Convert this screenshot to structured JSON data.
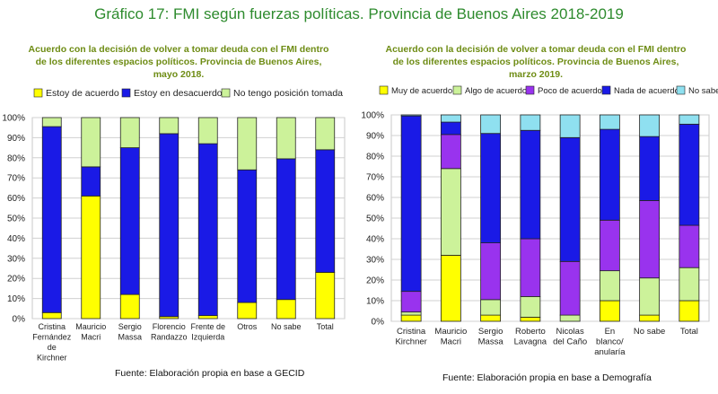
{
  "page_title": "Gráfico 17: FMI según fuerzas políticas. Provincia de Buenos Aires 2018-2019",
  "colors": {
    "title": "#2e8b2e",
    "subtitle": "#6e8c14",
    "yellow": "#ffff00",
    "blue": "#1a1ae6",
    "light_green": "#ccf29a",
    "purple": "#9933ee",
    "light_blue": "#8fe0f0"
  },
  "chart_data": [
    {
      "type": "bar",
      "stacked": true,
      "title": "Acuerdo con la decisión de volver a tomar deuda con el FMI dentro de los diferentes espacios políticos. Provincia de Buenos Aires, mayo 2018.",
      "title_lines": [
        "Acuerdo con la decisión de volver a tomar deuda con el FMI dentro",
        "de los diferentes espacios políticos. Provincia de Buenos Aires,",
        "mayo 2018."
      ],
      "categories": [
        [
          "Cristina",
          "Fernández",
          "de",
          "Kirchner"
        ],
        [
          "Mauricio",
          "Macri"
        ],
        [
          "Sergio",
          "Massa"
        ],
        [
          "Florencio",
          "Randazzo"
        ],
        [
          "Frente de",
          "Izquierda"
        ],
        [
          "Otros"
        ],
        [
          "No sabe"
        ],
        [
          "Total"
        ]
      ],
      "series": [
        {
          "name": "Estoy de acuerdo",
          "color": "#ffff00",
          "values": [
            3,
            61,
            12,
            1,
            1.5,
            8,
            9.5,
            23
          ]
        },
        {
          "name": "Estoy en desacuerdo",
          "color": "#1a1ae6",
          "values": [
            92.5,
            14.5,
            73,
            91,
            85.5,
            66,
            70,
            61
          ]
        },
        {
          "name": "No tengo posición tomada",
          "color": "#ccf29a",
          "values": [
            4.5,
            24.5,
            15,
            8,
            13,
            26,
            20.5,
            16
          ]
        }
      ],
      "yticks": [
        "0%",
        "10%",
        "20%",
        "30%",
        "40%",
        "50%",
        "60%",
        "70%",
        "80%",
        "90%",
        "100%"
      ],
      "ylim": [
        0,
        100
      ],
      "legend_position": "top",
      "source": "Fuente: Elaboración propia en base a GECID"
    },
    {
      "type": "bar",
      "stacked": true,
      "title": "Acuerdo con la decisión de volver a tomar deuda con el FMI dentro de los diferentes espacios políticos. Provincia de Buenos Aires, marzo 2019.",
      "title_lines": [
        "Acuerdo con la decisión de volver a tomar deuda con el FMI dentro",
        "de los diferentes espacios políticos. Provincia de Buenos Aires,",
        "marzo 2019."
      ],
      "categories": [
        [
          "Cristina",
          "Kirchner"
        ],
        [
          "Mauricio",
          "Macri"
        ],
        [
          "Sergio",
          "Massa"
        ],
        [
          "Roberto",
          "Lavagna"
        ],
        [
          "Nicolas",
          "del Caño"
        ],
        [
          "En",
          "blanco/",
          "anularía"
        ],
        [
          "No sabe"
        ],
        [
          "Total"
        ]
      ],
      "series": [
        {
          "name": "Muy de acuerdo",
          "color": "#ffff00",
          "values": [
            3,
            32,
            3,
            2,
            0,
            10,
            3,
            10
          ]
        },
        {
          "name": "Algo de acuerdo",
          "color": "#ccf29a",
          "values": [
            1.5,
            42,
            7.5,
            10,
            3,
            14.5,
            18,
            16
          ]
        },
        {
          "name": "Poco de acuerdo",
          "color": "#9933ee",
          "values": [
            10,
            16.5,
            27.5,
            28,
            26,
            24.5,
            37.5,
            20.5
          ]
        },
        {
          "name": "Nada de acuerdo",
          "color": "#1a1ae6",
          "values": [
            85,
            6,
            53,
            52.5,
            60,
            44,
            31,
            49
          ]
        },
        {
          "name": "No sabe",
          "color": "#8fe0f0",
          "values": [
            0.5,
            3.5,
            9,
            7.5,
            11,
            7,
            10.5,
            4.5
          ]
        }
      ],
      "yticks": [
        "0%",
        "10%",
        "20%",
        "30%",
        "40%",
        "50%",
        "60%",
        "70%",
        "80%",
        "90%",
        "100%"
      ],
      "ylim": [
        0,
        100
      ],
      "legend_position": "top",
      "source": "Fuente: Elaboración propia en base a Demografía"
    }
  ]
}
